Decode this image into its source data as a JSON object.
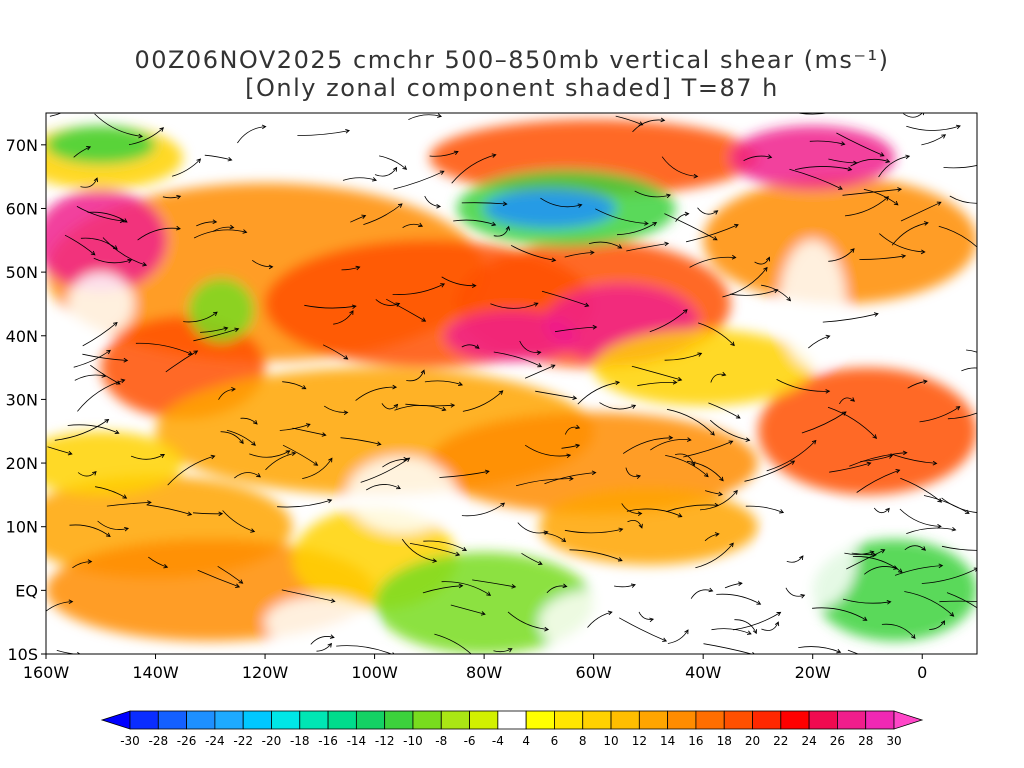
{
  "title": {
    "line1": "00Z06NOV2025 cmchr 500–850mb vertical shear (ms⁻¹)",
    "line2": "[Only zonal component shaded] T=87 h"
  },
  "map": {
    "lat_labels": [
      "70N",
      "60N",
      "50N",
      "40N",
      "30N",
      "20N",
      "10N",
      "EQ",
      "10S"
    ],
    "lat_values": [
      70,
      60,
      50,
      40,
      30,
      20,
      10,
      0,
      -10
    ],
    "lon_labels": [
      "160W",
      "140W",
      "120W",
      "100W",
      "80W",
      "60W",
      "40W",
      "20W",
      "0"
    ],
    "lon_values": [
      -160,
      -140,
      -120,
      -100,
      -80,
      -60,
      -40,
      -20,
      0
    ],
    "lon_range": [
      -160,
      10
    ],
    "lat_range": [
      -10,
      75
    ],
    "shaded_field": "zonal shear (ms⁻¹)",
    "overlay": "streamlines"
  },
  "colorbar": {
    "levels": [
      "-30",
      "-28",
      "-26",
      "-24",
      "-22",
      "-20",
      "-18",
      "-16",
      "-14",
      "-12",
      "-10",
      "-8",
      "-6",
      "-4",
      "4",
      "6",
      "8",
      "10",
      "12",
      "14",
      "16",
      "18",
      "20",
      "22",
      "24",
      "26",
      "28",
      "30"
    ],
    "colors": [
      "#0000ff",
      "#0a2dff",
      "#1460ff",
      "#1e90ff",
      "#1eaaff",
      "#00c8ff",
      "#00e6e6",
      "#00e6b4",
      "#00dc8c",
      "#14d264",
      "#3cd23c",
      "#78dc1e",
      "#aae614",
      "#d2f000",
      "#ffffff",
      "#ffff00",
      "#ffe600",
      "#ffd200",
      "#ffbe00",
      "#ffa500",
      "#ff8c00",
      "#ff6e00",
      "#ff5000",
      "#ff2800",
      "#ff0000",
      "#f00a50",
      "#f01e8c",
      "#f028b4",
      "#ff46c8"
    ]
  }
}
